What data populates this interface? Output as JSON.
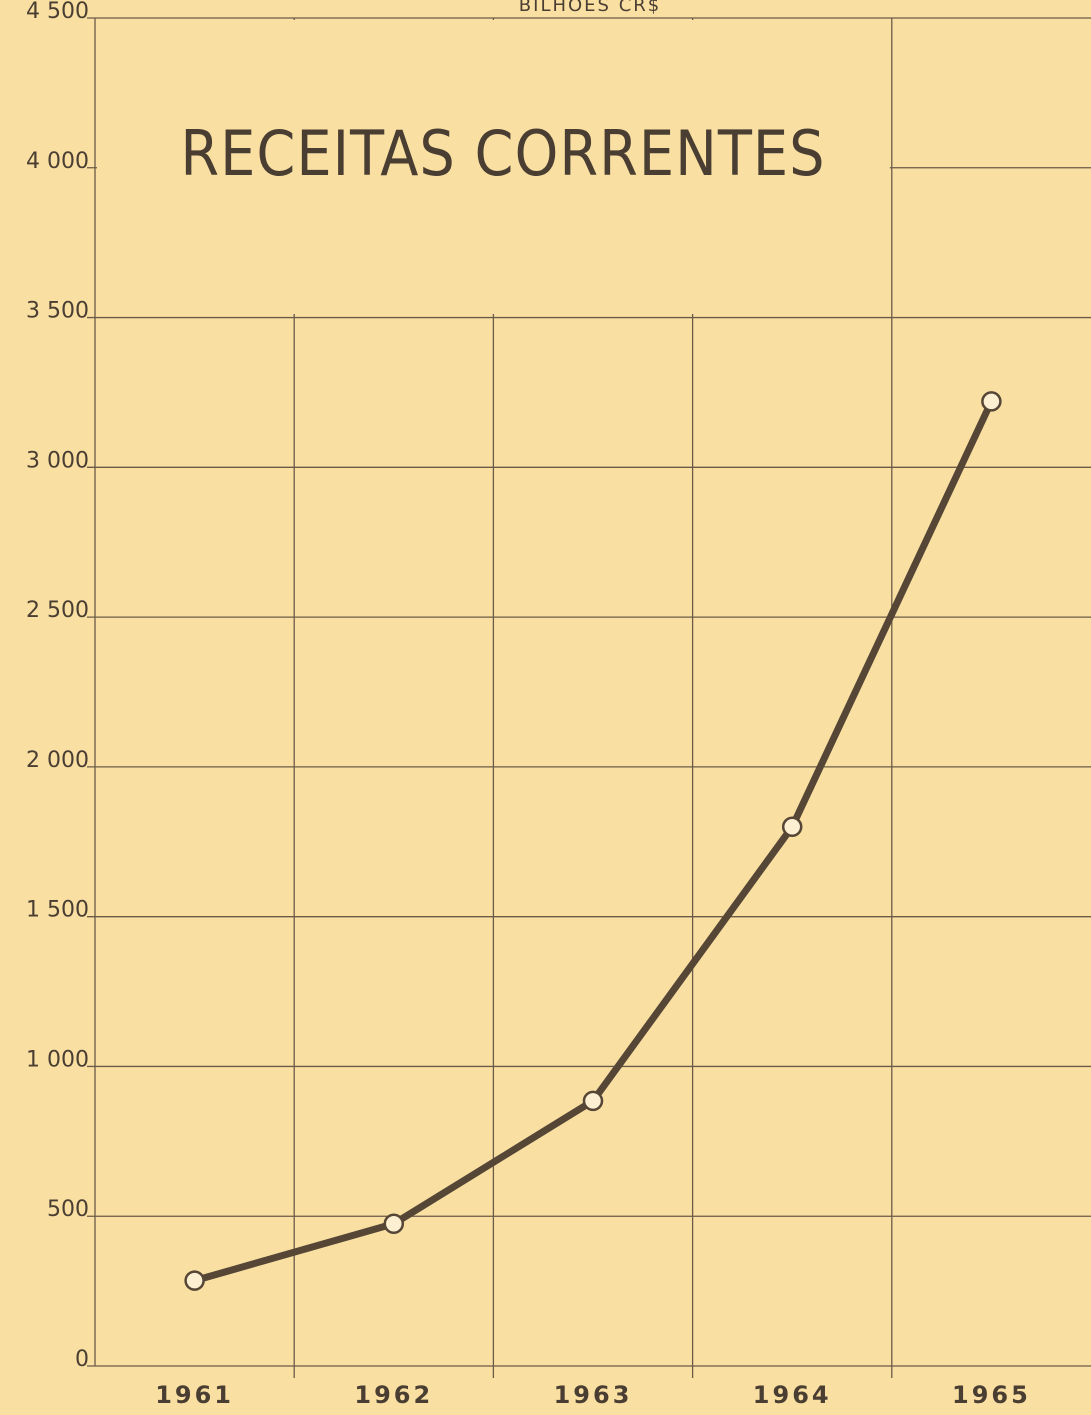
{
  "chart_data": {
    "type": "line",
    "title": "RECEITAS CORRENTES",
    "y_label": "BILHÕES CR$",
    "categories": [
      "1961",
      "1962",
      "1963",
      "1964",
      "1965"
    ],
    "series": [
      {
        "name": "Receitas correntes",
        "color": "#554636",
        "values": [
          285,
          475,
          885,
          1800,
          3220
        ]
      }
    ],
    "ylim": [
      0,
      4500
    ],
    "yticks": [
      0,
      500,
      {
        "value": 1000,
        "label": "1 000"
      },
      {
        "value": 1500,
        "label": "1 500"
      },
      {
        "value": 2000,
        "label": "2 000"
      },
      {
        "value": 2500,
        "label": "2 500"
      },
      {
        "value": 3000,
        "label": "3 000"
      },
      {
        "value": 3500,
        "label": "3 500"
      },
      {
        "value": 4000,
        "label": "4 000"
      },
      {
        "value": 4500,
        "label": "4 500"
      }
    ],
    "grid": true
  }
}
